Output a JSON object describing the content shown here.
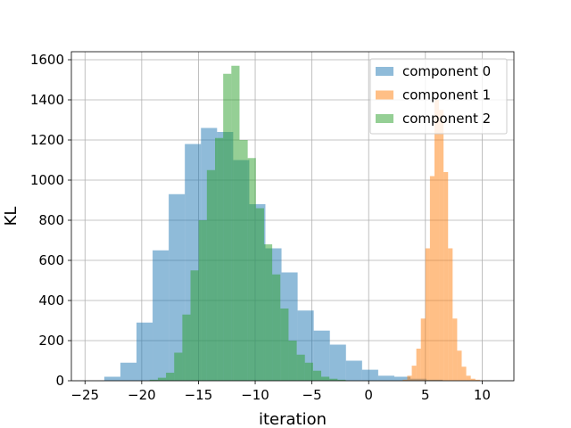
{
  "chart_data": {
    "type": "histogram",
    "xlabel": "iteration",
    "ylabel": "KL",
    "xlim": [
      -26.2,
      12.8
    ],
    "ylim": [
      0,
      1640
    ],
    "xticks": [
      -25,
      -20,
      -15,
      -10,
      -5,
      0,
      5,
      10
    ],
    "xtick_labels": [
      "−25",
      "−20",
      "−15",
      "−10",
      "−5",
      "0",
      "5",
      "10"
    ],
    "yticks": [
      0,
      200,
      400,
      600,
      800,
      1000,
      1200,
      1400,
      1600
    ],
    "ytick_labels": [
      "0",
      "200",
      "400",
      "600",
      "800",
      "1000",
      "1200",
      "1400",
      "1600"
    ],
    "grid": true,
    "legend_position": "top-right",
    "series": [
      {
        "name": "component 0",
        "color": "#1f77b4",
        "alpha": 0.5,
        "bin_start": -23.3,
        "bin_width": 1.42,
        "counts": [
          20,
          90,
          290,
          650,
          930,
          1180,
          1260,
          1240,
          1100,
          880,
          660,
          540,
          350,
          250,
          180,
          100,
          55,
          25,
          20,
          10,
          5
        ]
      },
      {
        "name": "component 1",
        "color": "#ff7f0e",
        "alpha": 0.5,
        "bin_start": 3.0,
        "bin_width": 0.4,
        "counts": [
          5,
          25,
          75,
          160,
          310,
          660,
          1020,
          1400,
          1350,
          1040,
          660,
          310,
          150,
          70,
          25,
          10,
          5,
          2
        ]
      },
      {
        "name": "component 2",
        "color": "#2ca02c",
        "alpha": 0.5,
        "bin_start": -19.3,
        "bin_width": 0.72,
        "counts": [
          5,
          15,
          40,
          140,
          330,
          550,
          800,
          1050,
          1210,
          1530,
          1570,
          1200,
          1110,
          860,
          680,
          530,
          360,
          200,
          130,
          90,
          50,
          20,
          10,
          5
        ]
      }
    ]
  }
}
